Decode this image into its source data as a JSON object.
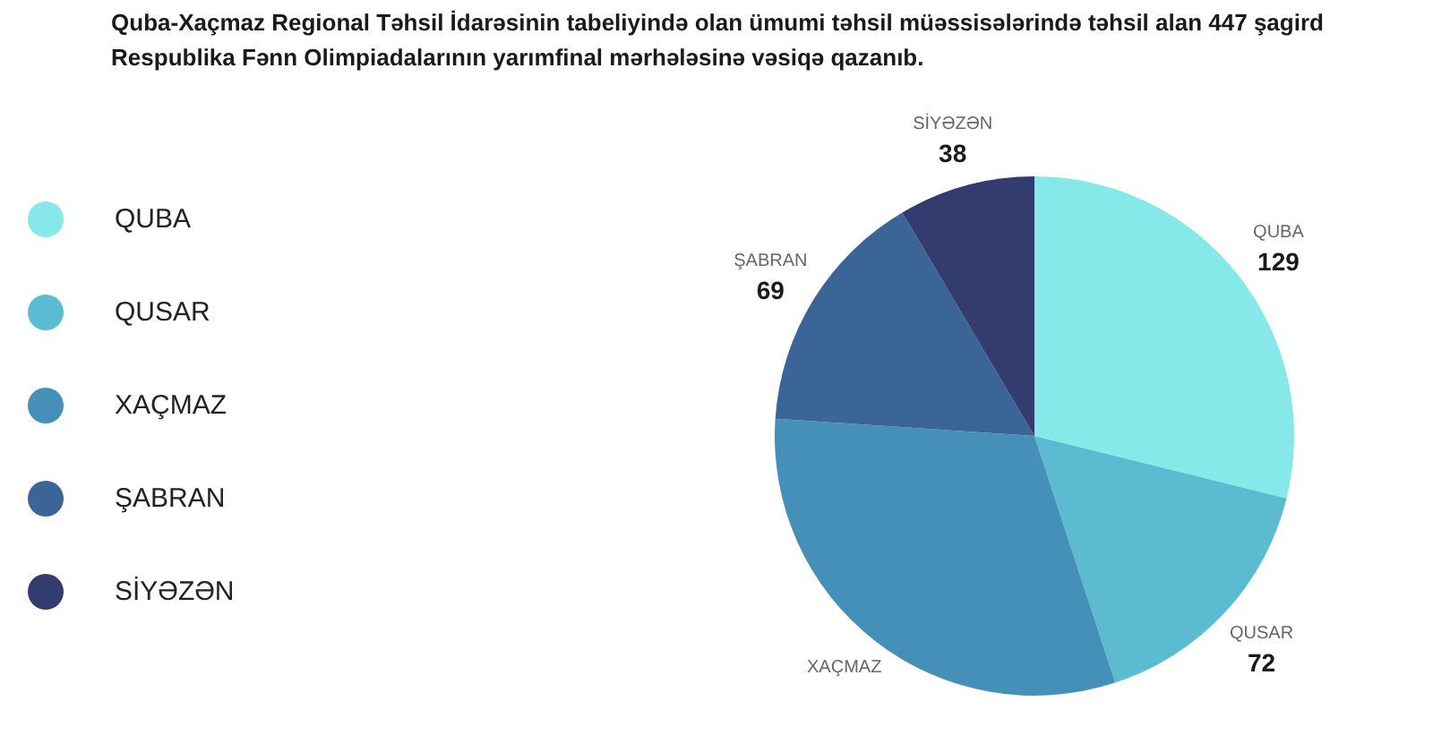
{
  "chart_data": {
    "type": "pie",
    "title": "Quba-Xaçmaz Regional Təhsil İdarəsinin tabeliyində olan ümumi təhsil müəssisələrində təhsil alan 447 şagird Respublika Fənn Olimpiadalarının yarımfinal mərhələsinə vəsiqə qazanıb.",
    "categories": [
      "QUBA",
      "QUSAR",
      "XAÇMAZ",
      "ŞABRAN",
      "SİYƏZƏN"
    ],
    "values": [
      129,
      72,
      139,
      69,
      38
    ],
    "colors": [
      "#86e8e8",
      "#5bbbd0",
      "#4590b8",
      "#3a6596",
      "#323c6e"
    ],
    "value_labels": [
      "129",
      "72",
      null,
      "69",
      "38"
    ],
    "legend": "left"
  }
}
